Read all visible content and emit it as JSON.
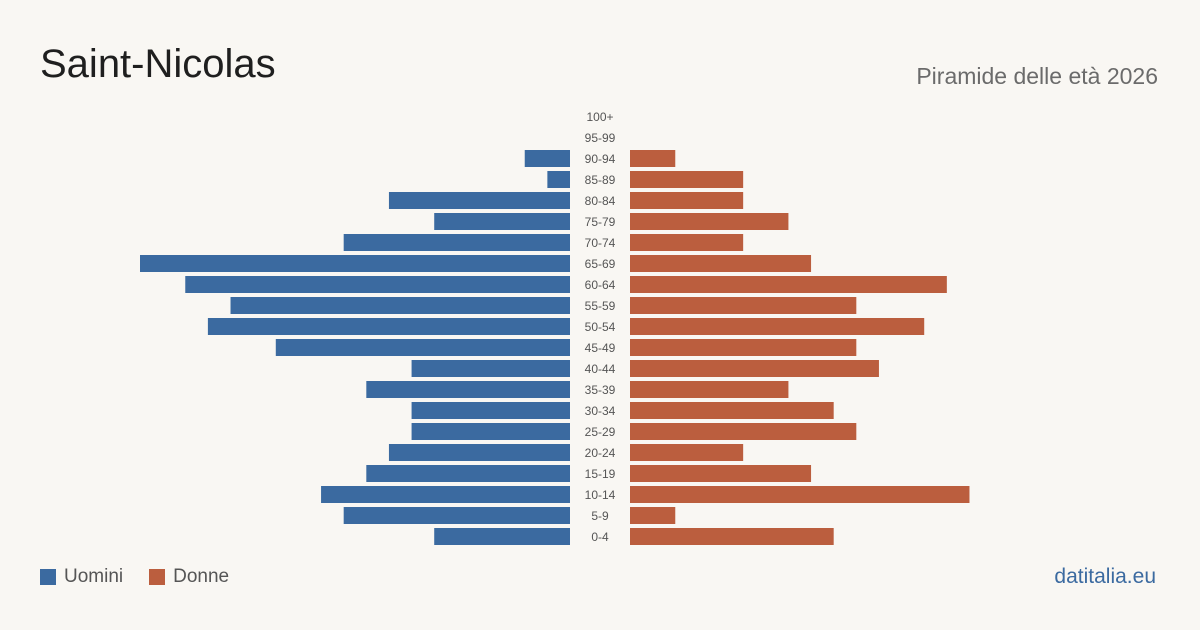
{
  "header": {
    "title": "Saint-Nicolas",
    "subtitle": "Piramide delle età 2026"
  },
  "legend": {
    "men_label": "Uomini",
    "women_label": "Donne"
  },
  "colors": {
    "men": "#3b6aa0",
    "women": "#bb5e3e",
    "background": "#f9f7f3"
  },
  "brand": "datitalia.eu",
  "chart_data": {
    "type": "bar",
    "orientation": "horizontal-pyramid",
    "categories": [
      "100+",
      "95-99",
      "90-94",
      "85-89",
      "80-84",
      "75-79",
      "70-74",
      "65-69",
      "60-64",
      "55-59",
      "50-54",
      "45-49",
      "40-44",
      "35-39",
      "30-34",
      "25-29",
      "20-24",
      "15-19",
      "10-14",
      "5-9",
      "0-4"
    ],
    "series": [
      {
        "name": "Uomini",
        "values": [
          0,
          0,
          2,
          1,
          8,
          6,
          10,
          19,
          17,
          15,
          16,
          13,
          7,
          9,
          7,
          7,
          8,
          9,
          11,
          10,
          6
        ]
      },
      {
        "name": "Donne",
        "values": [
          0,
          0,
          2,
          5,
          5,
          7,
          5,
          8,
          14,
          10,
          13,
          10,
          11,
          7,
          9,
          10,
          5,
          8,
          15,
          2,
          9
        ]
      }
    ],
    "max_value": 19,
    "legend_position": "bottom-left",
    "grid": false
  }
}
